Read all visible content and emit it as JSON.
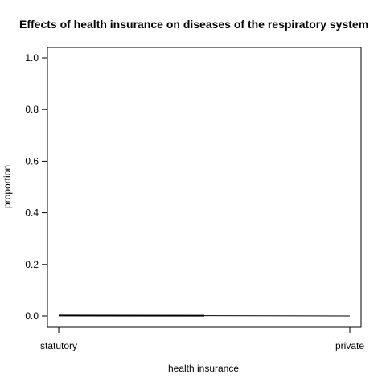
{
  "chart_data": {
    "type": "line",
    "title": "Effects of health insurance on diseases of the respiratory system",
    "xlabel": "health insurance",
    "ylabel": "proportion",
    "categories": [
      "statutory",
      "private"
    ],
    "series": [
      {
        "values": [
          0.002,
          0.0
        ]
      }
    ],
    "ylim": [
      0,
      1.0
    ],
    "yticks": [
      "0.0",
      "0.2",
      "0.4",
      "0.6",
      "0.8",
      "1.0"
    ],
    "grid": false,
    "colors": {
      "line": "#000000",
      "axis": "#000000",
      "background": "#ffffff"
    }
  }
}
